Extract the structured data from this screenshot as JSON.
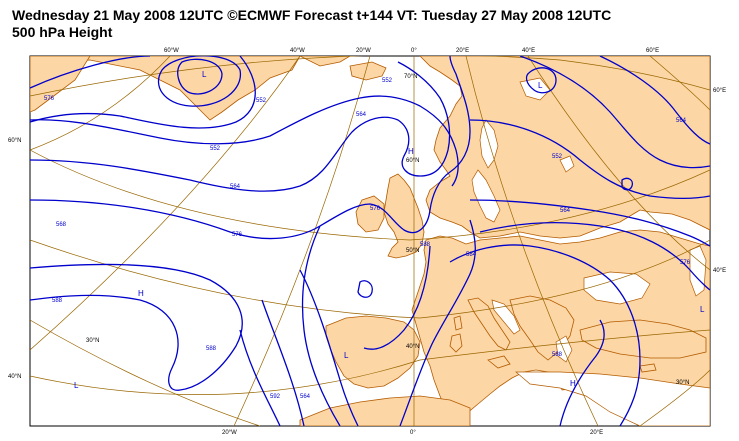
{
  "header": {
    "line1": "Wednesday 21 May 2008 12UTC ©ECMWF Forecast t+144 VT: Tuesday 27 May 2008 12UTC",
    "line2": "500 hPa Height"
  },
  "colors": {
    "land": "#fcd6a4",
    "sea": "#ffffff",
    "coast": "#b35b00",
    "graticule": "#996600",
    "contour": "#0000cc"
  },
  "graticule_labels": {
    "top": [
      "60°W",
      "40°W",
      "20°W",
      "0°",
      "20°E",
      "40°E",
      "60°E"
    ],
    "bottom": [
      "20°W",
      "0°",
      "20°E"
    ],
    "left": [
      "60°N",
      "40°N"
    ],
    "right": [
      "60°E",
      "40°E"
    ],
    "inner": [
      "70°N",
      "60°N",
      "50°N",
      "40°N",
      "30°N",
      "30°N"
    ]
  },
  "contour_labels": [
    "576",
    "552",
    "564",
    "552",
    "568",
    "588",
    "588",
    "576",
    "564",
    "592",
    "564",
    "552",
    "576",
    "588",
    "564",
    "576",
    "552",
    "584",
    "588",
    "564"
  ],
  "pressure_centres": {
    "L1": "L",
    "L2": "L",
    "L3": "L",
    "L4": "L",
    "L5": "L",
    "H1": "H",
    "H2": "H",
    "H3": "H"
  }
}
